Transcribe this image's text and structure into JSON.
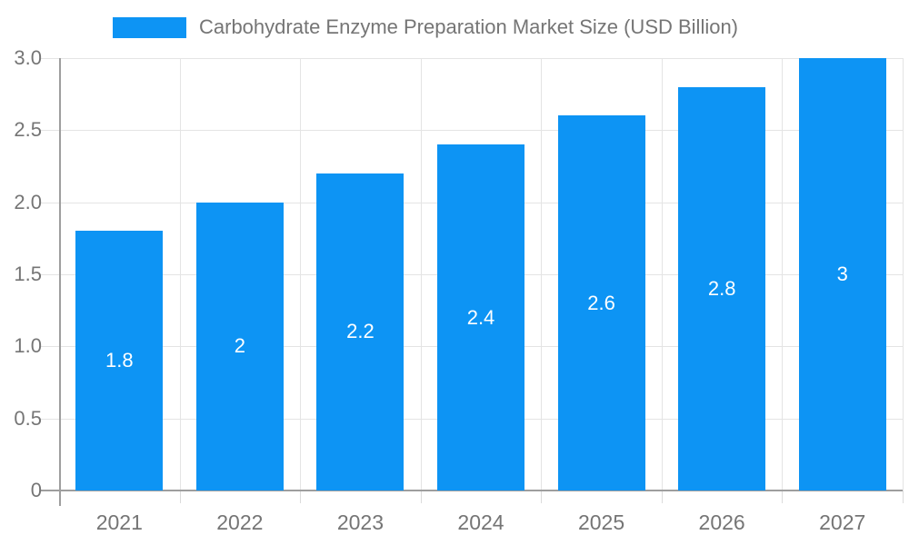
{
  "chart_data": {
    "type": "bar",
    "title": "Carbohydrate Enzyme Preparation Market Size (USD Billion)",
    "categories": [
      "2021",
      "2022",
      "2023",
      "2024",
      "2025",
      "2026",
      "2027"
    ],
    "values": [
      1.8,
      2,
      2.2,
      2.4,
      2.6,
      2.8,
      3
    ],
    "bar_labels": [
      "1.8",
      "2",
      "2.2",
      "2.4",
      "2.6",
      "2.8",
      "3"
    ],
    "xlabel": "",
    "ylabel": "",
    "ylim": [
      0,
      3
    ],
    "y_ticks": [
      {
        "value": 0,
        "label": "0"
      },
      {
        "value": 0.5,
        "label": "0.5"
      },
      {
        "value": 1.0,
        "label": "1.0"
      },
      {
        "value": 1.5,
        "label": "1.5"
      },
      {
        "value": 2.0,
        "label": "2.0"
      },
      {
        "value": 2.5,
        "label": "2.5"
      },
      {
        "value": 3.0,
        "label": "3.0"
      }
    ],
    "grid": true,
    "legend_position": "top",
    "colors": {
      "bar": "#0D94F4",
      "bar_value_label": "#FFFFFF",
      "axis_text": "#757575",
      "title_text": "#757575",
      "axis_line": "#9E9E9E",
      "gridline": "#E4E4E4",
      "tick": "#DBDBDB"
    }
  }
}
